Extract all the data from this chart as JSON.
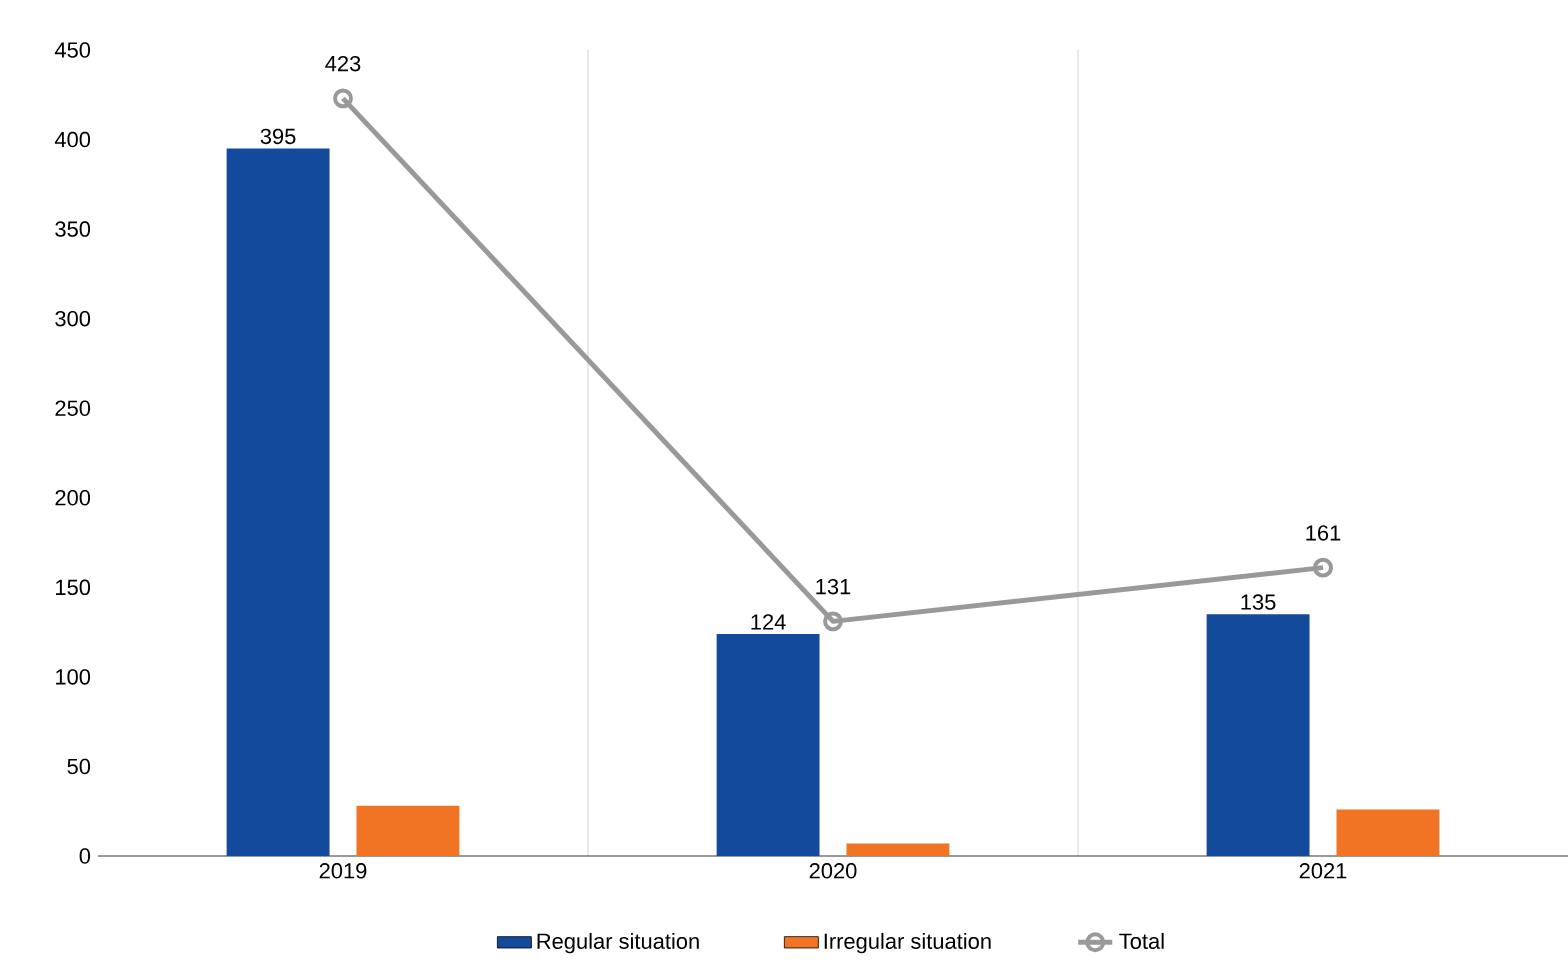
{
  "chart_data": {
    "type": "bar",
    "categories": [
      "2019",
      "2020",
      "2021"
    ],
    "series": [
      {
        "name": "Regular situation",
        "color": "#134a9c",
        "values": [
          395,
          124,
          135
        ],
        "value_labels": [
          "395",
          "124",
          "135"
        ]
      },
      {
        "name": "Irregular situation",
        "color": "#f07423",
        "values": [
          28,
          7,
          26
        ]
      },
      {
        "name": "Total",
        "type": "line",
        "color": "#999999",
        "marker": "circle",
        "values": [
          423,
          131,
          161
        ],
        "value_labels": [
          "423",
          "131",
          "161"
        ]
      }
    ],
    "ylim": [
      0,
      450
    ],
    "yticks": [
      0,
      50,
      100,
      150,
      200,
      250,
      300,
      350,
      400,
      450
    ],
    "grid": "x",
    "legend": "bottom"
  }
}
